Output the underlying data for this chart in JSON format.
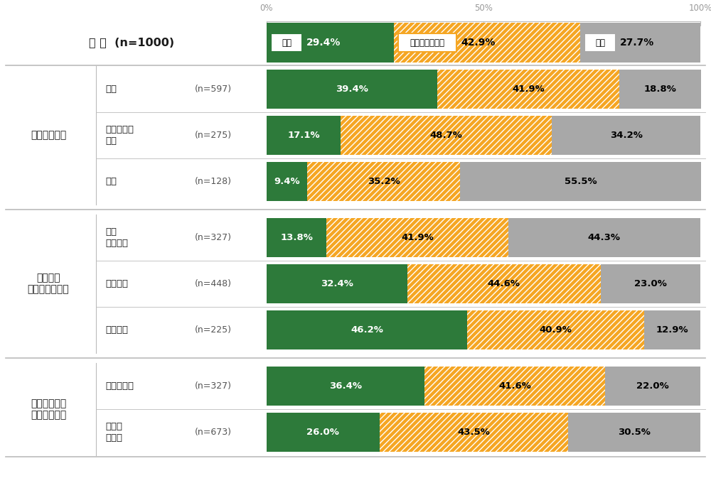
{
  "title_row": {
    "label": "全 体  (n=1000)",
    "values": [
      29.4,
      42.9,
      27.7
    ],
    "pct_labels": [
      "29.4%",
      "42.9%",
      "27.7%"
    ],
    "box_labels": [
      "好き",
      "どちらでもない",
      "嫌い"
    ]
  },
  "groups": [
    {
      "group_label": "読書は好きか",
      "rows": [
        {
          "label": "好き",
          "n": "(n=597)",
          "values": [
            39.4,
            41.9,
            18.8
          ]
        },
        {
          "label": "どちらでも\nない",
          "n": "(n=275)",
          "values": [
            17.1,
            48.7,
            34.2
          ]
        },
        {
          "label": "嫌い",
          "n": "(n=128)",
          "values": [
            9.4,
            35.2,
            55.5
          ]
        }
      ]
    },
    {
      "group_label": "月に本を\n何冊程度読むか",
      "rows": [
        {
          "label": "全く\n読まない",
          "n": "(n=327)",
          "values": [
            13.8,
            41.9,
            44.3
          ]
        },
        {
          "label": "１、２冊",
          "n": "(n=448)",
          "values": [
            32.4,
            44.6,
            23.0
          ]
        },
        {
          "label": "３冊以上",
          "n": "(n=225)",
          "values": [
            46.2,
            40.9,
            12.9
          ]
        }
      ]
    },
    {
      "group_label": "普段、新聞を\n読んでいるか",
      "rows": [
        {
          "label": "読んでいる",
          "n": "(n=327)",
          "values": [
            36.4,
            41.6,
            22.0
          ]
        },
        {
          "label": "読んで\nいない",
          "n": "(n=673)",
          "values": [
            26.0,
            43.5,
            30.5
          ]
        }
      ]
    }
  ],
  "colors": {
    "green": "#2d7a3a",
    "orange": "#f5a623",
    "gray": "#a8a8a8",
    "white": "#ffffff",
    "bg": "#ffffff",
    "separator": "#bbbbbb",
    "text_dark": "#1a1a1a",
    "text_gray": "#555555",
    "pct_axis": "#999999"
  },
  "figsize": [
    10.0,
    6.87
  ],
  "dpi": 100
}
